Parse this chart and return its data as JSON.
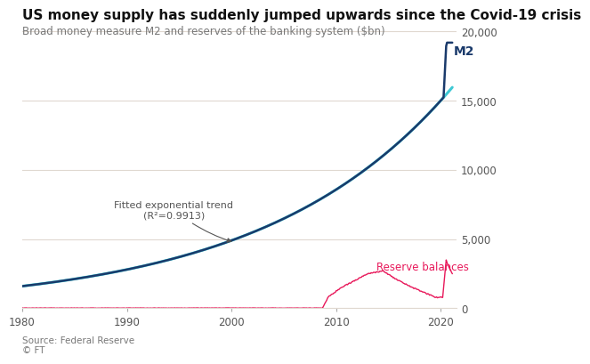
{
  "title": "US money supply has suddenly jumped upwards since the Covid-19 crisis",
  "subtitle": "Broad money measure M2 and reserves of the banking system ($bn)",
  "source": "Source: Federal Reserve\n© FT",
  "m2_color": "#1a3a6b",
  "trend_color": "#3ec8d4",
  "reserves_color": "#e8185a",
  "background_color": "#ffffff",
  "grid_color": "#e0d8d0",
  "ylim": [
    0,
    20000
  ],
  "yticks": [
    0,
    5000,
    10000,
    15000,
    20000
  ],
  "xlim": [
    1980,
    2021.5
  ],
  "xticks": [
    1980,
    1990,
    2000,
    2010,
    2020
  ],
  "m2_label": "M2",
  "reserves_label": "Reserve balances",
  "trend_label": "Fitted exponential trend\n(R²=0.9913)"
}
